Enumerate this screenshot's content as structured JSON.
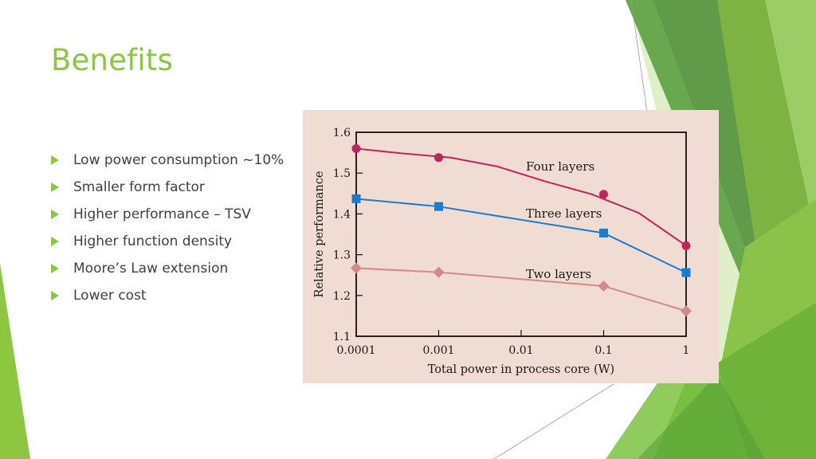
{
  "slide": {
    "title": "Benefits",
    "bullets": [
      "Low power consumption ~10%",
      "Smaller form factor",
      "Higher performance – TSV",
      "Higher function density",
      "Moore’s Law extension",
      "Lower cost"
    ]
  },
  "colors": {
    "accent": "#8dc63f",
    "chart_background": "#f0dcd2",
    "four_layers": "#c0245c",
    "three_layers": "#1a7ccc",
    "two_layers": "#d08a8a"
  },
  "chart_data": {
    "type": "line",
    "xlabel": "Total power in process core (W)",
    "ylabel": "Relative performance",
    "x_scale": "log",
    "xlim": [
      0.0001,
      1
    ],
    "ylim": [
      1.1,
      1.6
    ],
    "x_ticks": [
      "0.0001",
      "0.001",
      "0.01",
      "0.1",
      "1"
    ],
    "y_ticks": [
      "1.1",
      "1.2",
      "1.3",
      "1.4",
      "1.5",
      "1.6"
    ],
    "series": [
      {
        "name": "Four layers",
        "marker": "circle",
        "x": [
          0.0001,
          0.001,
          0.1,
          1
        ],
        "y": [
          1.56,
          1.538,
          1.448,
          1.322
        ],
        "curve_y": [
          1.56,
          1.548,
          1.538,
          1.516,
          1.48,
          1.448,
          1.402,
          1.322
        ]
      },
      {
        "name": "Three layers",
        "marker": "square",
        "x": [
          0.0001,
          0.001,
          0.1,
          1
        ],
        "y": [
          1.437,
          1.418,
          1.353,
          1.256
        ]
      },
      {
        "name": "Two layers",
        "marker": "diamond",
        "x": [
          0.0001,
          0.001,
          0.1,
          1
        ],
        "y": [
          1.267,
          1.257,
          1.223,
          1.162
        ]
      }
    ]
  }
}
